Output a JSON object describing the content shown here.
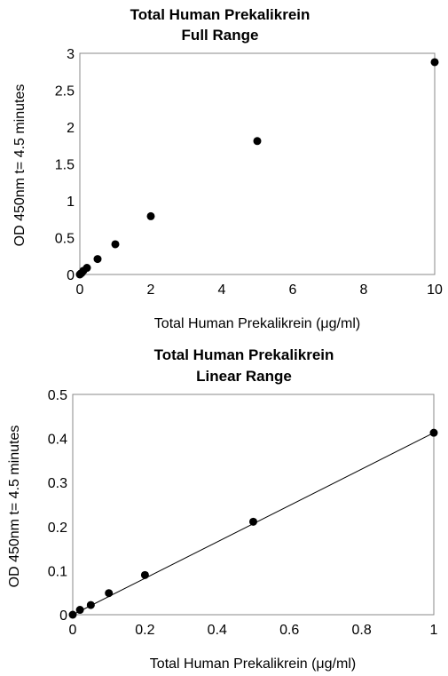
{
  "chart_data": [
    {
      "type": "scatter",
      "title": "Total Human Prekalikrein",
      "subtitle": "Full Range",
      "xlabel": "Total Human Prekalikrein (μg/ml)",
      "ylabel": "OD 450nm t= 4.5 minutes",
      "xlim": [
        0,
        10
      ],
      "ylim": [
        0,
        3
      ],
      "xticks": [
        "0",
        "2",
        "4",
        "6",
        "8",
        "10"
      ],
      "yticks": [
        "0",
        "0.5",
        "1",
        "1.5",
        "2",
        "2.5",
        "3"
      ],
      "xtick_values": [
        0,
        2,
        4,
        6,
        8,
        10
      ],
      "ytick_values": [
        0,
        0.5,
        1,
        1.5,
        2,
        2.5,
        3
      ],
      "grid": false,
      "marker_color": "#000000",
      "points": [
        {
          "x": 0,
          "y": 0.0
        },
        {
          "x": 0.02,
          "y": 0.01
        },
        {
          "x": 0.05,
          "y": 0.02
        },
        {
          "x": 0.1,
          "y": 0.05
        },
        {
          "x": 0.2,
          "y": 0.09
        },
        {
          "x": 0.5,
          "y": 0.21
        },
        {
          "x": 1,
          "y": 0.41
        },
        {
          "x": 2,
          "y": 0.79
        },
        {
          "x": 5,
          "y": 1.81
        },
        {
          "x": 10,
          "y": 2.88
        }
      ]
    },
    {
      "type": "scatter",
      "title": "Total Human Prekalikrein",
      "subtitle": "Linear Range",
      "xlabel": "Total Human Prekalikrein (μg/ml)",
      "ylabel": "OD 450nm t= 4.5 minutes",
      "xlim": [
        0,
        1
      ],
      "ylim": [
        0,
        0.5
      ],
      "xticks": [
        "0",
        "0.2",
        "0.4",
        "0.6",
        "0.8",
        "1"
      ],
      "yticks": [
        "0",
        "0.1",
        "0.2",
        "0.3",
        "0.4",
        "0.5"
      ],
      "xtick_values": [
        0,
        0.2,
        0.4,
        0.6,
        0.8,
        1
      ],
      "ytick_values": [
        0,
        0.1,
        0.2,
        0.3,
        0.4,
        0.5
      ],
      "grid": false,
      "marker_color": "#000000",
      "trendline": {
        "x": [
          0,
          1
        ],
        "y": [
          0.0,
          0.413
        ]
      },
      "points": [
        {
          "x": 0,
          "y": 0.0
        },
        {
          "x": 0.02,
          "y": 0.011
        },
        {
          "x": 0.05,
          "y": 0.022
        },
        {
          "x": 0.1,
          "y": 0.049
        },
        {
          "x": 0.2,
          "y": 0.09
        },
        {
          "x": 0.5,
          "y": 0.211
        },
        {
          "x": 1,
          "y": 0.413
        }
      ]
    }
  ]
}
